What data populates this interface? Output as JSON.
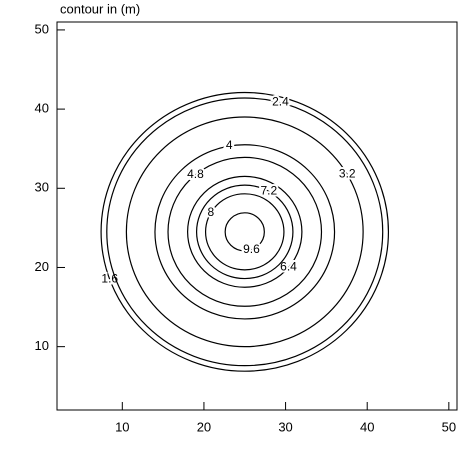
{
  "chart_data": {
    "type": "contour",
    "title": "contour in (m)",
    "xlim": [
      2,
      51
    ],
    "ylim": [
      2,
      51
    ],
    "xticks": [
      10,
      20,
      30,
      40,
      50
    ],
    "yticks": [
      10,
      20,
      30,
      40,
      50
    ],
    "center": [
      25,
      24.5
    ],
    "levels": [
      1.6,
      2.4,
      3.2,
      4.0,
      4.8,
      6.4,
      7.2,
      8.0,
      9.6
    ],
    "radii": [
      17.6,
      16.9,
      14.5,
      11.0,
      9.4,
      7.0,
      5.9,
      4.8,
      2.4
    ],
    "color": "#000000"
  }
}
